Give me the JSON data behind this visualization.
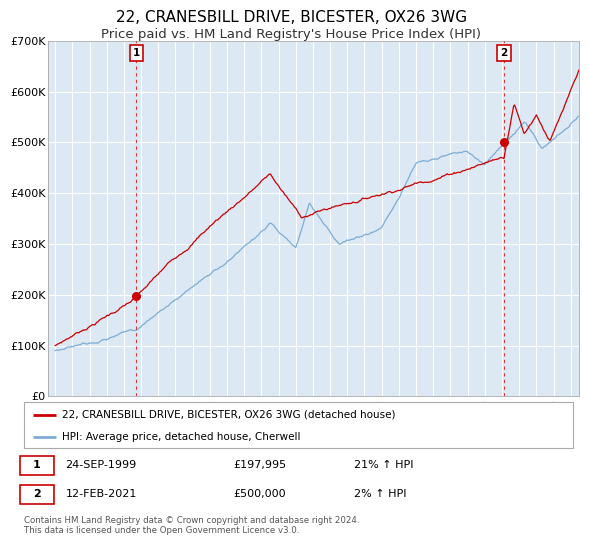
{
  "title": "22, CRANESBILL DRIVE, BICESTER, OX26 3WG",
  "subtitle": "Price paid vs. HM Land Registry's House Price Index (HPI)",
  "title_fontsize": 11,
  "subtitle_fontsize": 9.5,
  "background_color": "#ffffff",
  "plot_bg_color": "#dce9f5",
  "grid_color": "#ffffff",
  "red_line_color": "#cc0000",
  "blue_line_color": "#7dadd4",
  "marker1_date": 1999.73,
  "marker1_value": 197995,
  "marker2_date": 2021.12,
  "marker2_value": 500000,
  "vline_color": "#cc0000",
  "ylim": [
    0,
    700000
  ],
  "xlim": [
    1994.6,
    2025.5
  ],
  "yticks": [
    0,
    100000,
    200000,
    300000,
    400000,
    500000,
    600000,
    700000
  ],
  "ytick_labels": [
    "£0",
    "£100K",
    "£200K",
    "£300K",
    "£400K",
    "£500K",
    "£600K",
    "£700K"
  ],
  "xticks": [
    1995,
    1996,
    1997,
    1998,
    1999,
    2000,
    2001,
    2002,
    2003,
    2004,
    2005,
    2006,
    2007,
    2008,
    2009,
    2010,
    2011,
    2012,
    2013,
    2014,
    2015,
    2016,
    2017,
    2018,
    2019,
    2020,
    2021,
    2022,
    2023,
    2024,
    2025
  ],
  "legend_label_red": "22, CRANESBILL DRIVE, BICESTER, OX26 3WG (detached house)",
  "legend_label_blue": "HPI: Average price, detached house, Cherwell",
  "annotation1_text1": "24-SEP-1999",
  "annotation1_text2": "£197,995",
  "annotation1_text3": "21% ↑ HPI",
  "annotation2_text1": "12-FEB-2021",
  "annotation2_text2": "£500,000",
  "annotation2_text3": "2% ↑ HPI",
  "footer_text": "Contains HM Land Registry data © Crown copyright and database right 2024.\nThis data is licensed under the Open Government Licence v3.0."
}
